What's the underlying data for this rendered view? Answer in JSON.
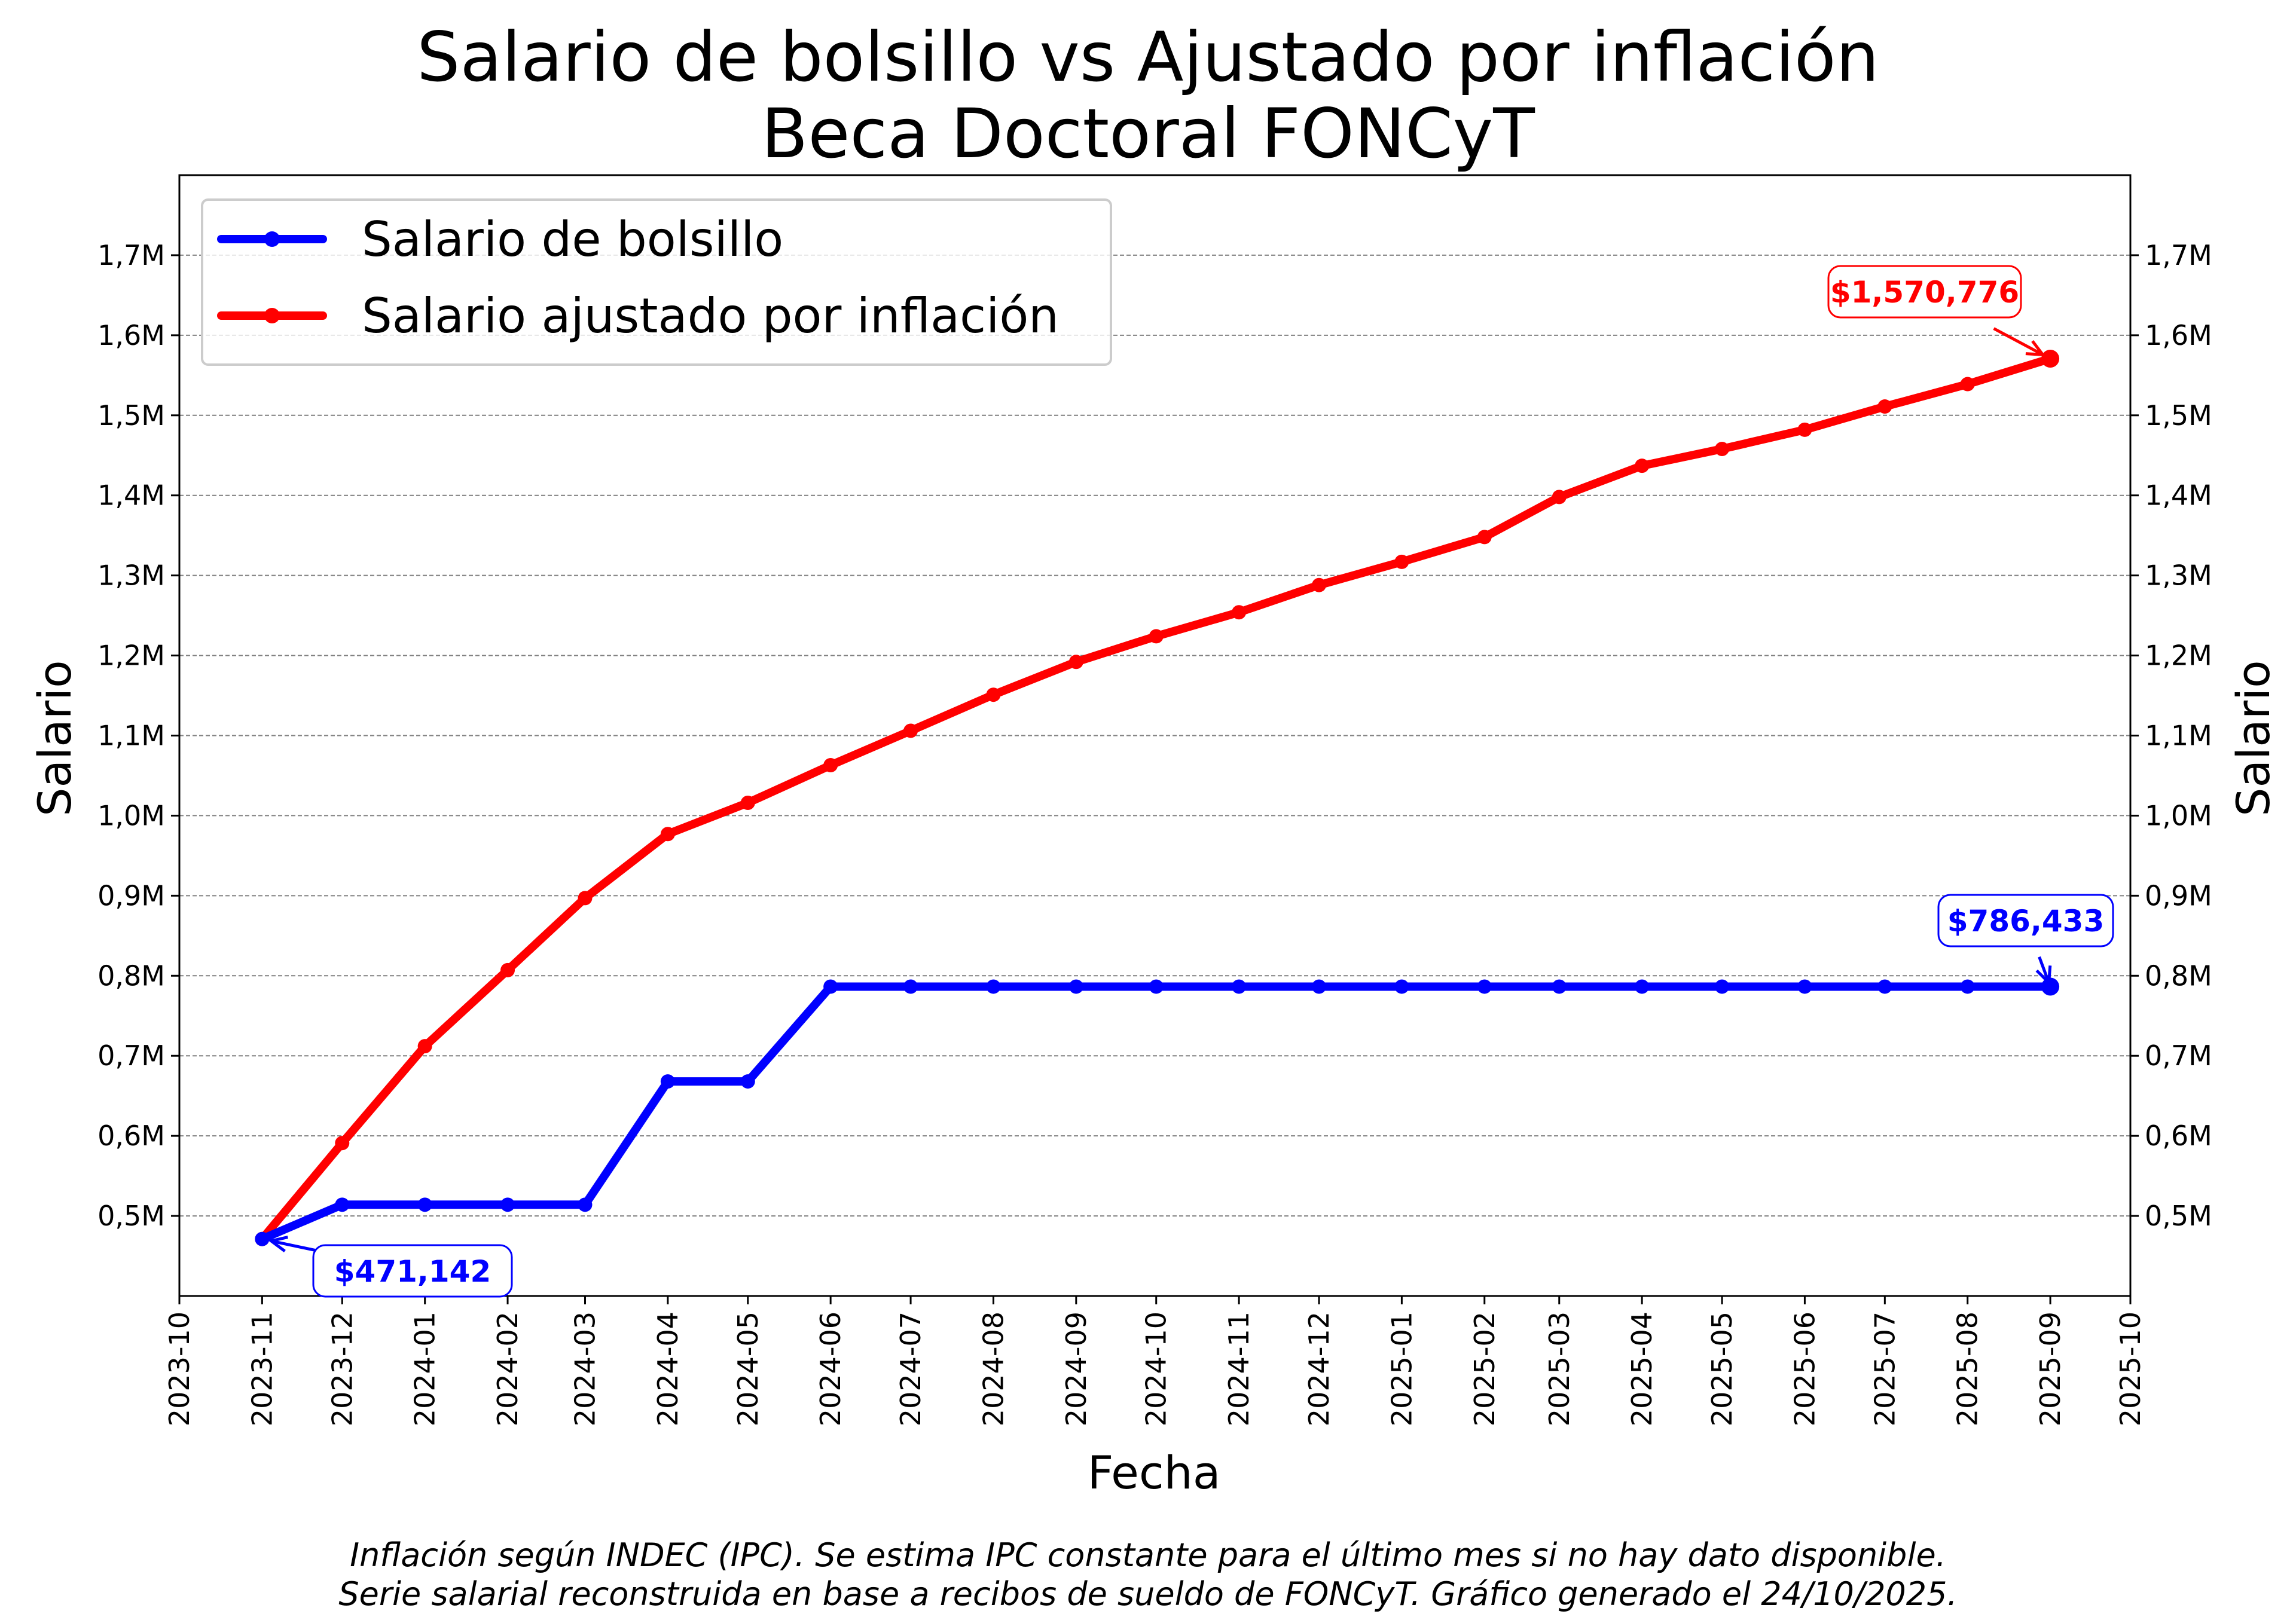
{
  "chart_data": {
    "type": "line",
    "title": [
      "Salario de bolsillo vs Ajustado por inflación",
      "Beca Doctoral FONCyT"
    ],
    "xlabel": "Fecha",
    "ylabel": "Salario",
    "ylabel_right": "Salario",
    "x": [
      "2023-11",
      "2023-12",
      "2024-01",
      "2024-02",
      "2024-03",
      "2024-04",
      "2024-05",
      "2024-06",
      "2024-07",
      "2024-08",
      "2024-09",
      "2024-10",
      "2024-11",
      "2024-12",
      "2025-01",
      "2025-02",
      "2025-03",
      "2025-04",
      "2025-05",
      "2025-06",
      "2025-07",
      "2025-08",
      "2025-09"
    ],
    "x_ticks": [
      "2023-10",
      "2023-11",
      "2023-12",
      "2024-01",
      "2024-02",
      "2024-03",
      "2024-04",
      "2024-05",
      "2024-06",
      "2024-07",
      "2024-08",
      "2024-09",
      "2024-10",
      "2024-11",
      "2024-12",
      "2025-01",
      "2025-02",
      "2025-03",
      "2025-04",
      "2025-05",
      "2025-06",
      "2025-07",
      "2025-08",
      "2025-09",
      "2025-10"
    ],
    "xlim": [
      "2023-10-01",
      "2025-10-01"
    ],
    "ylim": [
      400000,
      1800000
    ],
    "y_ticks": [
      500000,
      600000,
      700000,
      800000,
      900000,
      1000000,
      1100000,
      1200000,
      1300000,
      1400000,
      1500000,
      1600000,
      1700000
    ],
    "y_tick_labels": [
      "0,5M",
      "0,6M",
      "0,7M",
      "0,8M",
      "0,9M",
      "1,0M",
      "1,1M",
      "1,2M",
      "1,3M",
      "1,4M",
      "1,5M",
      "1,6M",
      "1,7M"
    ],
    "grid": "horizontal dashed",
    "legend_position": "top-left",
    "series": [
      {
        "name": "Salario de bolsillo",
        "color": "#0000ff",
        "values": [
          471142,
          514000,
          514000,
          514000,
          514000,
          668000,
          668000,
          786433,
          786433,
          786433,
          786433,
          786433,
          786433,
          786433,
          786433,
          786433,
          786433,
          786433,
          786433,
          786433,
          786433,
          786433,
          786433
        ]
      },
      {
        "name": "Salario ajustado por inflación",
        "color": "#ff0000",
        "values": [
          471142,
          591000,
          712000,
          807000,
          897000,
          977000,
          1016000,
          1063000,
          1106000,
          1151000,
          1192000,
          1224000,
          1254000,
          1288000,
          1317000,
          1348000,
          1398000,
          1437000,
          1458000,
          1482000,
          1511000,
          1539000,
          1570776
        ]
      }
    ],
    "annotations": [
      {
        "text": "$471,142",
        "series": 0,
        "point": 0,
        "color": "#0000ff"
      },
      {
        "text": "$786,433",
        "series": 0,
        "point": 22,
        "color": "#0000ff"
      },
      {
        "text": "$1,570,776",
        "series": 1,
        "point": 22,
        "color": "#ff0000"
      }
    ],
    "footnote": [
      "Inflación según INDEC (IPC). Se estima IPC constante para el último mes si no hay dato disponible.",
      "Serie salarial reconstruida en base a recibos de sueldo de FONCyT. Gráfico generado el 24/10/2025."
    ]
  }
}
